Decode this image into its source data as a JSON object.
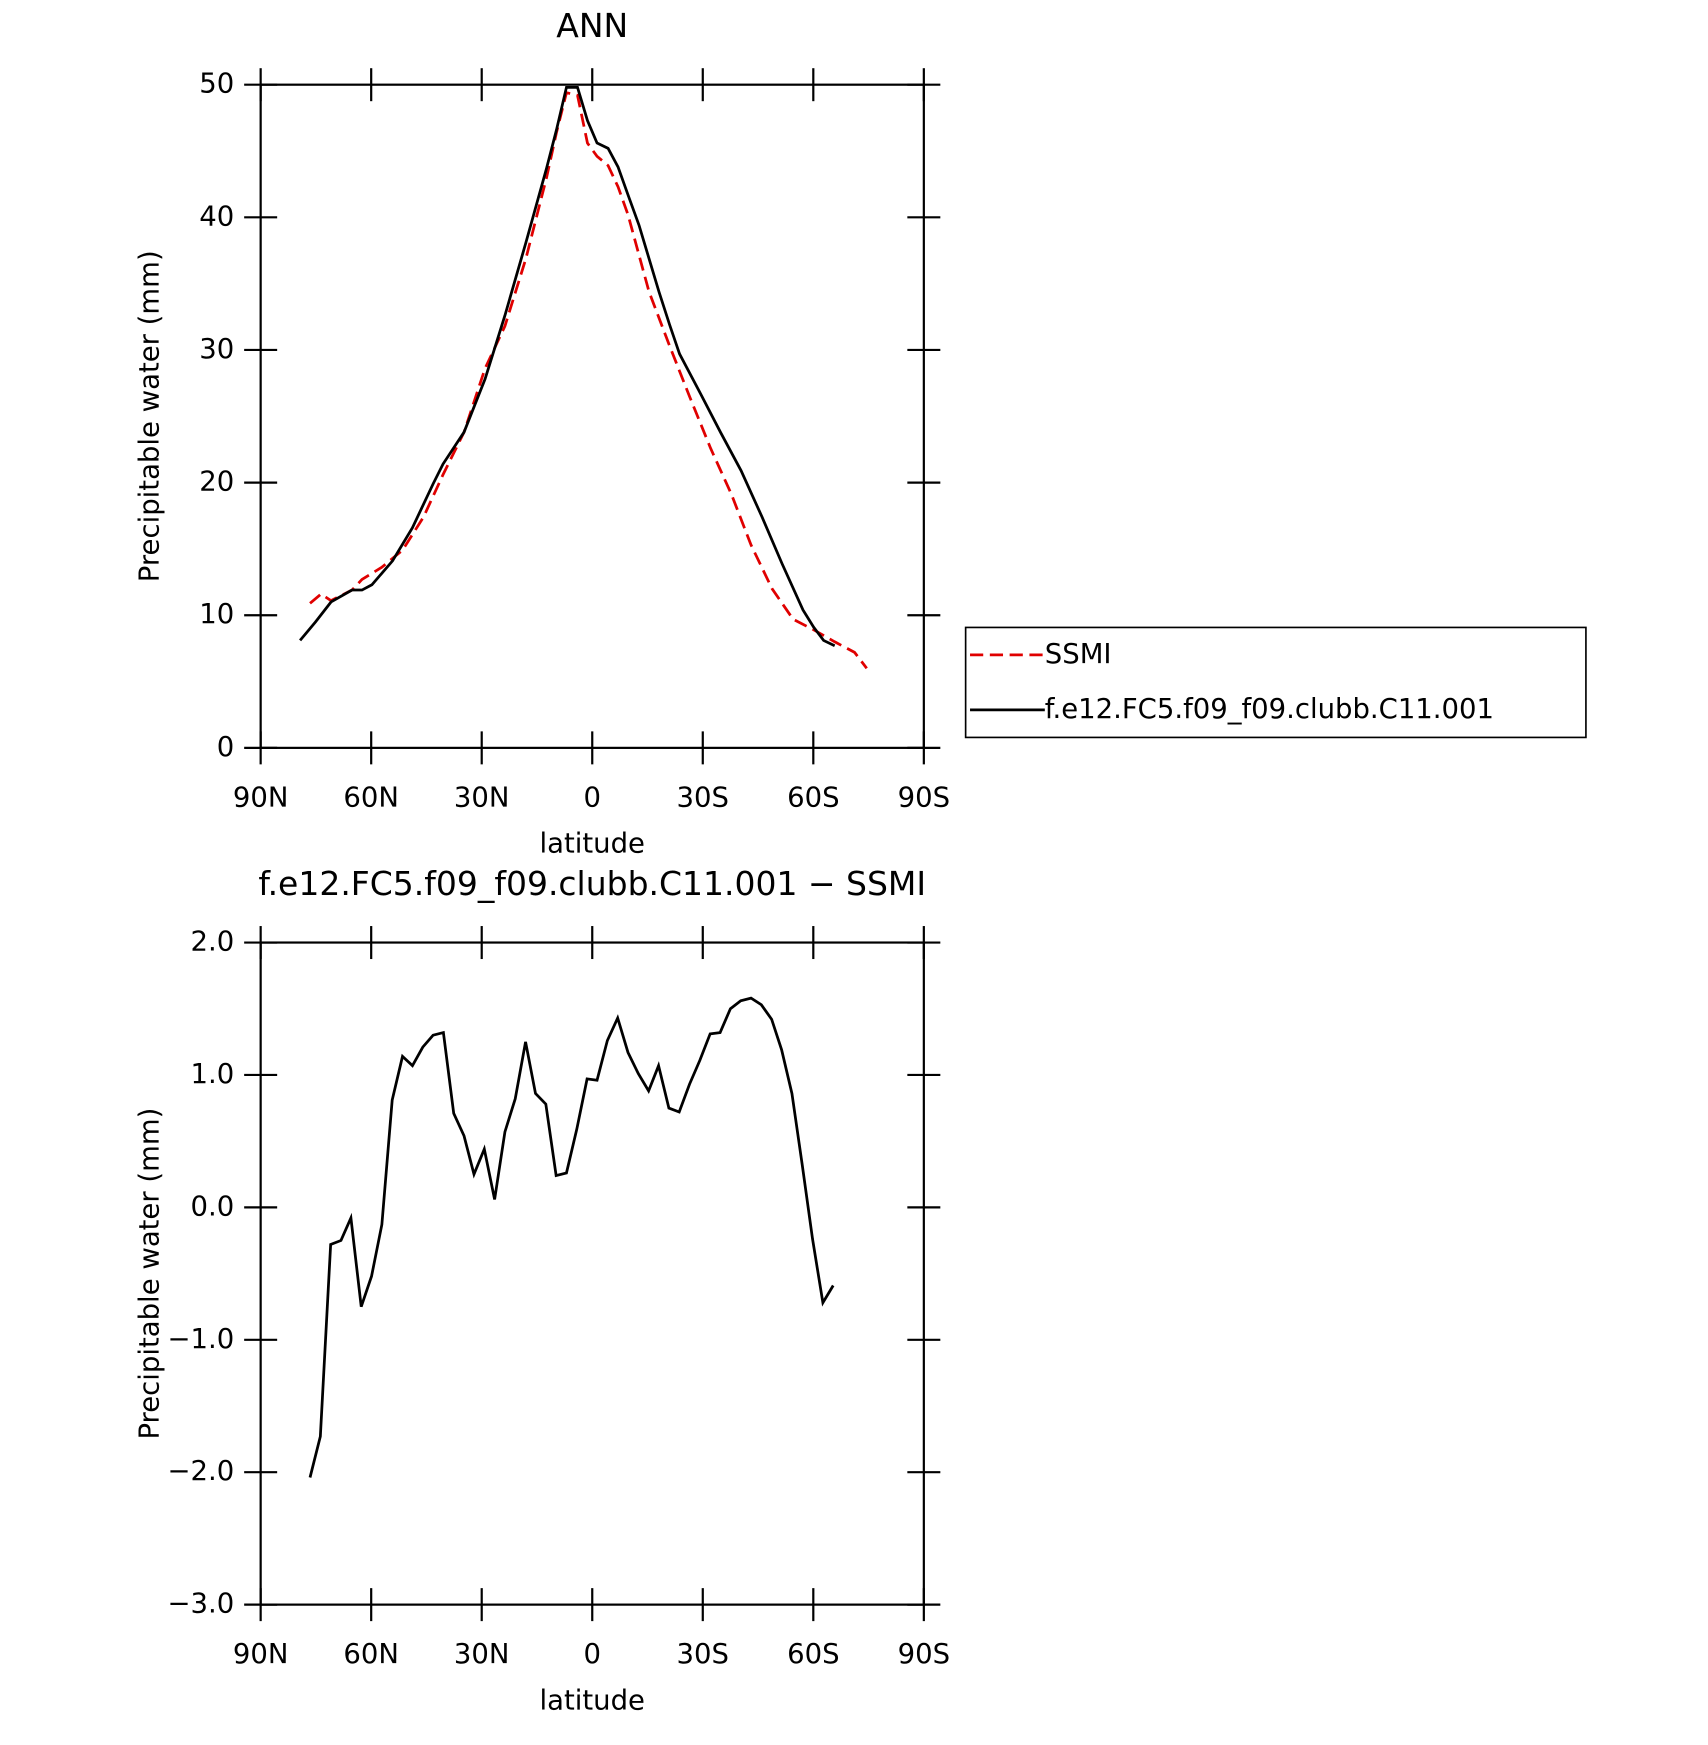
{
  "chart_data": [
    {
      "type": "line",
      "title": "ANN",
      "x_label": "latitude",
      "y_label": "Precipitable water (mm)",
      "xlim": [
        90,
        -90
      ],
      "xticks": [
        {
          "value": 90,
          "label": "90N"
        },
        {
          "value": 60,
          "label": "60N"
        },
        {
          "value": 30,
          "label": "30N"
        },
        0,
        {
          "value": -30,
          "label": "30S"
        },
        {
          "value": -60,
          "label": "60S"
        },
        {
          "value": -90,
          "label": "90S"
        }
      ],
      "ylim": [
        0,
        50
      ],
      "yticks": [
        0,
        10,
        20,
        30,
        40,
        50
      ],
      "legend": "right",
      "series": [
        {
          "name": "SSMI",
          "color": "#e00000",
          "line_style": "dashed",
          "x": [
            76.6,
            73.6,
            70.9,
            65.2,
            62.5,
            57.2,
            51.5,
            45.8,
            40.5,
            34.8,
            29.1,
            23.7,
            18.0,
            12.4,
            9.7,
            7.0,
            4.0,
            1.3,
            -1.3,
            -4.3,
            -7.0,
            -9.7,
            -15.4,
            -21.0,
            -26.4,
            -32.1,
            -37.8,
            -43.1,
            -48.8,
            -54.5,
            -60.1,
            -65.8,
            -71.2,
            -74.5
          ],
          "values": [
            10.9,
            11.6,
            11.1,
            11.9,
            12.7,
            13.6,
            14.9,
            17.4,
            20.6,
            23.8,
            28.6,
            31.8,
            36.9,
            43.0,
            46.4,
            49.4,
            49.2,
            45.6,
            44.6,
            43.9,
            42.3,
            40.2,
            34.4,
            30.3,
            26.5,
            22.6,
            19.1,
            15.3,
            12.0,
            9.7,
            8.9,
            8.0,
            7.2,
            6.0
          ]
        },
        {
          "name": "f.e12.FC5.f09_f09.clubb.C11.001",
          "color": "#000000",
          "line_style": "solid",
          "x": [
            79.3,
            75.1,
            70.9,
            65.2,
            62.5,
            59.8,
            54.2,
            48.8,
            43.2,
            40.5,
            34.8,
            29.1,
            23.7,
            18.0,
            12.4,
            9.7,
            7.0,
            4.0,
            1.3,
            -1.3,
            -4.3,
            -7.0,
            -9.7,
            -12.7,
            -18.1,
            -21.0,
            -23.7,
            -29.4,
            -34.8,
            -40.4,
            -46.1,
            -51.5,
            -57.2,
            -60.1,
            -62.8,
            -65.8
          ],
          "values": [
            8.1,
            9.5,
            11.0,
            11.9,
            11.9,
            12.3,
            14.1,
            16.6,
            19.9,
            21.4,
            23.8,
            27.8,
            32.6,
            38.1,
            43.7,
            46.6,
            49.8,
            49.8,
            47.3,
            45.6,
            45.2,
            43.8,
            41.7,
            39.4,
            34.4,
            31.9,
            29.7,
            26.7,
            23.8,
            20.9,
            17.4,
            13.9,
            10.4,
            9.1,
            8.1,
            7.7
          ]
        }
      ]
    },
    {
      "type": "line",
      "title": "f.e12.FC5.f09_f09.clubb.C11.001 − SSMI",
      "x_label": "latitude",
      "y_label": "Precipitable water (mm)",
      "xlim": [
        90,
        -90
      ],
      "xticks": [
        {
          "value": 90,
          "label": "90N"
        },
        {
          "value": 60,
          "label": "60N"
        },
        {
          "value": 30,
          "label": "30N"
        },
        0,
        {
          "value": -30,
          "label": "30S"
        },
        {
          "value": -60,
          "label": "60S"
        },
        {
          "value": -90,
          "label": "90S"
        }
      ],
      "ylim": [
        -3,
        2
      ],
      "yticks": [
        {
          "value": -3,
          "label": "−3.0"
        },
        {
          "value": -2,
          "label": "−2.0"
        },
        {
          "value": -1,
          "label": "−1.0"
        },
        {
          "value": 0,
          "label": "0.0"
        },
        {
          "value": 1,
          "label": "1.0"
        },
        {
          "value": 2,
          "label": "2.0"
        }
      ],
      "series": [
        {
          "color": "#000000",
          "line_style": "solid",
          "x": [
            76.6,
            73.8,
            71.0,
            68.2,
            65.5,
            62.7,
            59.9,
            57.1,
            54.3,
            51.5,
            48.8,
            46.0,
            43.2,
            40.4,
            37.6,
            34.8,
            32.1,
            29.3,
            26.5,
            23.7,
            20.9,
            18.1,
            15.4,
            12.6,
            9.8,
            7.0,
            4.2,
            1.4,
            -1.3,
            -4.1,
            -6.9,
            -9.7,
            -12.5,
            -15.3,
            -18.0,
            -20.8,
            -23.6,
            -26.4,
            -29.2,
            -32.0,
            -34.7,
            -37.5,
            -40.3,
            -43.1,
            -45.9,
            -48.7,
            -51.4,
            -54.2,
            -57.0,
            -59.8,
            -62.6,
            -65.4
          ],
          "values": [
            -2.04,
            -1.73,
            -0.28,
            -0.25,
            -0.08,
            -0.75,
            -0.52,
            -0.13,
            0.81,
            1.14,
            1.07,
            1.21,
            1.3,
            1.32,
            0.71,
            0.54,
            0.25,
            0.44,
            0.06,
            0.57,
            0.82,
            1.25,
            0.86,
            0.78,
            0.24,
            0.26,
            0.59,
            0.97,
            0.96,
            1.26,
            1.43,
            1.17,
            1.01,
            0.88,
            1.07,
            0.75,
            0.72,
            0.93,
            1.11,
            1.31,
            1.32,
            1.5,
            1.56,
            1.58,
            1.53,
            1.42,
            1.19,
            0.86,
            0.32,
            -0.24,
            -0.72,
            -0.59
          ]
        }
      ]
    }
  ]
}
